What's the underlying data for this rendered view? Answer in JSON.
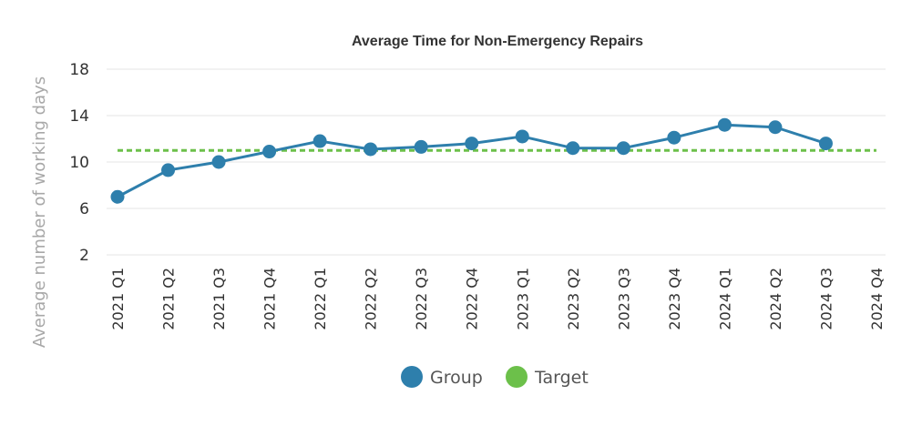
{
  "chart_data": {
    "type": "line",
    "title": "Average Time for Non-Emergency Repairs",
    "xlabel": "",
    "ylabel": "Average number of working days",
    "categories": [
      "2021 Q1",
      "2021 Q2",
      "2021 Q3",
      "2021 Q4",
      "2022 Q1",
      "2022 Q2",
      "2022 Q3",
      "2022 Q4",
      "2023 Q1",
      "2023 Q2",
      "2023 Q3",
      "2023 Q4",
      "2024 Q1",
      "2024 Q2",
      "2024 Q3",
      "2024 Q4"
    ],
    "yticks": [
      "2",
      "6",
      "10",
      "14",
      "18"
    ],
    "ylim": [
      2,
      18
    ],
    "grid": true,
    "legend_position": "bottom",
    "series": [
      {
        "name": "Group",
        "style": "solid-line-with-markers",
        "color": "#2e7fac",
        "values": [
          7.0,
          9.3,
          10.0,
          10.9,
          11.8,
          11.1,
          11.3,
          11.6,
          12.2,
          11.2,
          11.2,
          12.1,
          13.2,
          13.0,
          11.6,
          null
        ]
      },
      {
        "name": "Target",
        "style": "dashed-line",
        "color": "#6cc04a",
        "values": [
          11,
          11,
          11,
          11,
          11,
          11,
          11,
          11,
          11,
          11,
          11,
          11,
          11,
          11,
          11,
          11
        ]
      }
    ]
  }
}
